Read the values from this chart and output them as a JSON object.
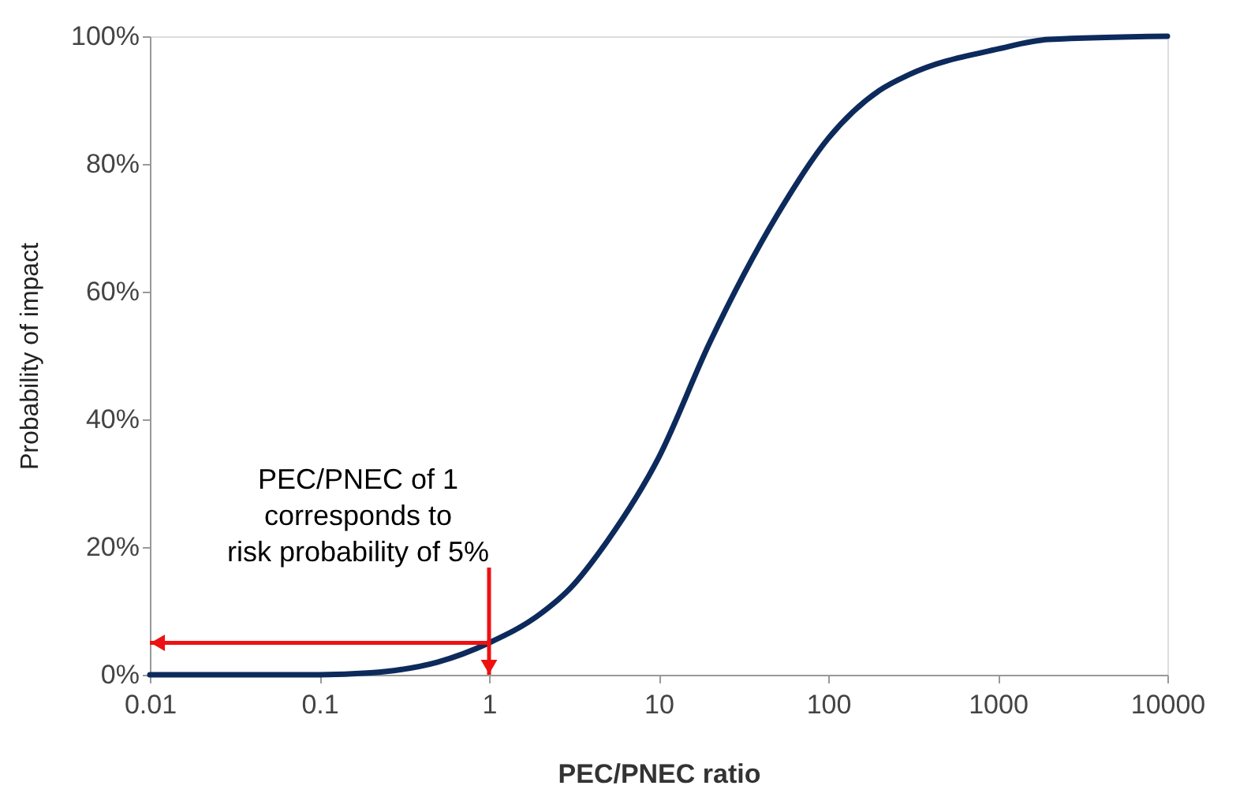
{
  "chart_data": {
    "type": "line",
    "xlabel": "PEC/PNEC  ratio",
    "ylabel": "Probability of impact",
    "log": "x",
    "xlim": [
      0.01,
      10000
    ],
    "xticks": [
      0.01,
      0.1,
      1,
      10,
      100,
      1000,
      10000
    ],
    "ylim": [
      0,
      100
    ],
    "yticks": [
      {
        "value": 0,
        "label": "0%"
      },
      {
        "value": 20,
        "label": "20%"
      },
      {
        "value": 40,
        "label": "40%"
      },
      {
        "value": 60,
        "label": "60%"
      },
      {
        "value": 80,
        "label": "80%"
      },
      {
        "value": 100,
        "label": "100%"
      }
    ],
    "grid": false,
    "marker": "none",
    "line_style": "solid",
    "series": [
      {
        "color": "#0d2a5c",
        "x": [
          0.01,
          0.1,
          0.2,
          0.3,
          0.5,
          1,
          2,
          3,
          5,
          10,
          20,
          50,
          100,
          200,
          300,
          1000,
          2000,
          10000
        ],
        "values": [
          0,
          0,
          0.3,
          0.8,
          2,
          5,
          9.5,
          13.5,
          21,
          34,
          52,
          72,
          84,
          91.5,
          94,
          98,
          99.5,
          100
        ]
      }
    ],
    "annotations": [
      {
        "text": "PEC/PNEC of 1\ncorresponds to\nrisk probability of 5%",
        "x": 1,
        "y": 5
      }
    ]
  }
}
